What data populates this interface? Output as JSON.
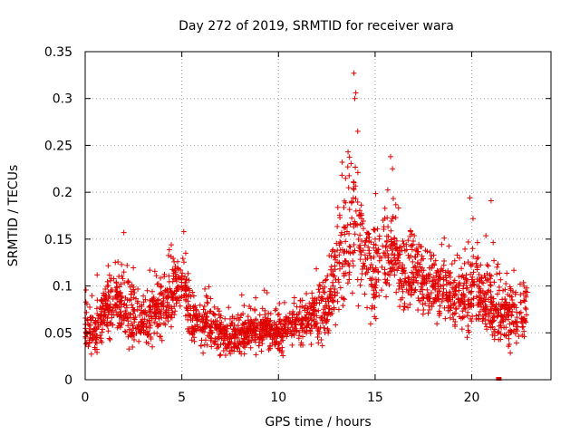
{
  "chart_data": {
    "type": "scatter",
    "title": "Day 272 of 2019, SRMTID for receiver wara",
    "xlabel": "GPS time / hours",
    "ylabel": "SRMTID / TECUs",
    "xlim": [
      0,
      24.1
    ],
    "ylim": [
      0,
      0.35
    ],
    "xticks": [
      0,
      5,
      10,
      15,
      20
    ],
    "xtick_labels": [
      "0",
      "5",
      "10",
      "15",
      "20"
    ],
    "yticks": [
      0,
      0.05,
      0.1,
      0.15,
      0.2,
      0.25,
      0.3,
      0.35
    ],
    "ytick_labels": [
      "0",
      "0.05",
      "0.1",
      "0.15",
      "0.2",
      "0.25",
      "0.3",
      "0.35"
    ],
    "grid": true,
    "marker": "+",
    "marker_color": "#e00000",
    "series": [
      {
        "name": "SRMTID",
        "color": "#e00000",
        "trend": {
          "x": [
            0,
            0.5,
            1,
            1.5,
            2,
            2.5,
            3,
            3.5,
            4,
            4.5,
            5,
            5.5,
            6,
            6.5,
            7,
            7.5,
            8,
            8.5,
            9,
            9.5,
            10,
            10.5,
            11,
            11.5,
            12,
            12.5,
            13,
            13.5,
            14,
            14.5,
            15,
            15.5,
            16,
            16.5,
            17,
            17.5,
            18,
            18.5,
            19,
            19.5,
            20,
            20.5,
            21,
            21.5,
            22,
            22.5,
            22.9
          ],
          "y": [
            0.055,
            0.05,
            0.07,
            0.085,
            0.075,
            0.065,
            0.06,
            0.07,
            0.08,
            0.085,
            0.11,
            0.07,
            0.06,
            0.055,
            0.05,
            0.045,
            0.045,
            0.05,
            0.05,
            0.055,
            0.05,
            0.055,
            0.06,
            0.065,
            0.07,
            0.08,
            0.12,
            0.15,
            0.17,
            0.13,
            0.11,
            0.13,
            0.14,
            0.11,
            0.12,
            0.1,
            0.1,
            0.09,
            0.085,
            0.09,
            0.095,
            0.09,
            0.08,
            0.065,
            0.07,
            0.07,
            0.08
          ],
          "spread": [
            0.02,
            0.02,
            0.025,
            0.03,
            0.03,
            0.025,
            0.025,
            0.025,
            0.03,
            0.03,
            0.03,
            0.025,
            0.02,
            0.02,
            0.02,
            0.02,
            0.02,
            0.02,
            0.02,
            0.02,
            0.02,
            0.02,
            0.02,
            0.02,
            0.025,
            0.035,
            0.045,
            0.06,
            0.06,
            0.04,
            0.04,
            0.045,
            0.04,
            0.035,
            0.035,
            0.03,
            0.03,
            0.03,
            0.03,
            0.035,
            0.035,
            0.03,
            0.03,
            0.03,
            0.03,
            0.03,
            0.035
          ]
        },
        "x_start": 0,
        "x_end": 22.9,
        "n_points": 2400,
        "peak_points": [
          {
            "x": 13.9,
            "y": 0.327
          },
          {
            "x": 14.0,
            "y": 0.306
          },
          {
            "x": 13.95,
            "y": 0.3
          },
          {
            "x": 14.1,
            "y": 0.265
          },
          {
            "x": 13.6,
            "y": 0.243
          },
          {
            "x": 15.8,
            "y": 0.238
          },
          {
            "x": 13.3,
            "y": 0.232
          },
          {
            "x": 15.9,
            "y": 0.225
          },
          {
            "x": 19.9,
            "y": 0.194
          },
          {
            "x": 21.0,
            "y": 0.191
          },
          {
            "x": 2.0,
            "y": 0.157
          },
          {
            "x": 5.1,
            "y": 0.158
          }
        ],
        "outliers": [
          {
            "x": 21.4,
            "y": 0.0
          }
        ]
      }
    ]
  }
}
